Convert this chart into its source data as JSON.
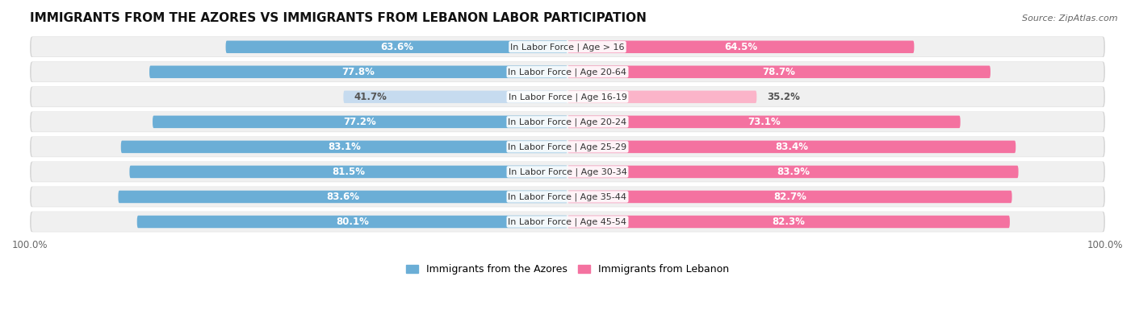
{
  "title": "IMMIGRANTS FROM THE AZORES VS IMMIGRANTS FROM LEBANON LABOR PARTICIPATION",
  "source": "Source: ZipAtlas.com",
  "categories": [
    "In Labor Force | Age > 16",
    "In Labor Force | Age 20-64",
    "In Labor Force | Age 16-19",
    "In Labor Force | Age 20-24",
    "In Labor Force | Age 25-29",
    "In Labor Force | Age 30-34",
    "In Labor Force | Age 35-44",
    "In Labor Force | Age 45-54"
  ],
  "azores_values": [
    63.6,
    77.8,
    41.7,
    77.2,
    83.1,
    81.5,
    83.6,
    80.1
  ],
  "lebanon_values": [
    64.5,
    78.7,
    35.2,
    73.1,
    83.4,
    83.9,
    82.7,
    82.3
  ],
  "azores_color": "#6baed6",
  "azores_color_light": "#c6dbef",
  "lebanon_color": "#f472a0",
  "lebanon_color_light": "#fbb4c9",
  "row_bg_color": "#e8e8e8",
  "row_inner_color": "#f8f8f8",
  "label_color_white": "#ffffff",
  "label_color_dark": "#555555",
  "legend_azores": "Immigrants from the Azores",
  "legend_lebanon": "Immigrants from Lebanon",
  "max_value": 100.0,
  "title_fontsize": 11,
  "label_fontsize": 8.5,
  "cat_fontsize": 8.0,
  "tick_fontsize": 8.5
}
